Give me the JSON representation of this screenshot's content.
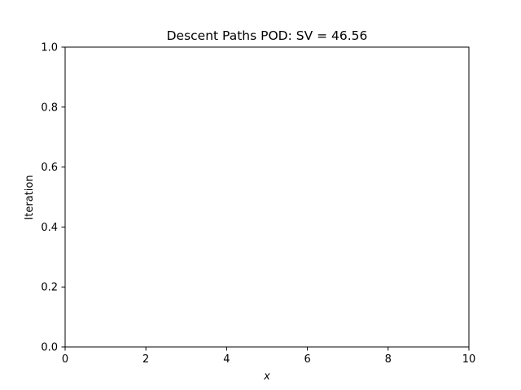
{
  "chart_data": {
    "type": "line",
    "title": "Descent Paths POD: SV = 46.56",
    "xlabel": "x",
    "ylabel": "Iteration",
    "xlim": [
      0,
      10
    ],
    "ylim": [
      0.0,
      1.0
    ],
    "x_ticks": [
      "0",
      "2",
      "4",
      "6",
      "8",
      "10"
    ],
    "y_ticks": [
      "0.0",
      "0.2",
      "0.4",
      "0.6",
      "0.8",
      "1.0"
    ],
    "series": [],
    "grid": false,
    "legend": "none"
  },
  "colors": {
    "axis": "#000000",
    "background": "#ffffff"
  }
}
